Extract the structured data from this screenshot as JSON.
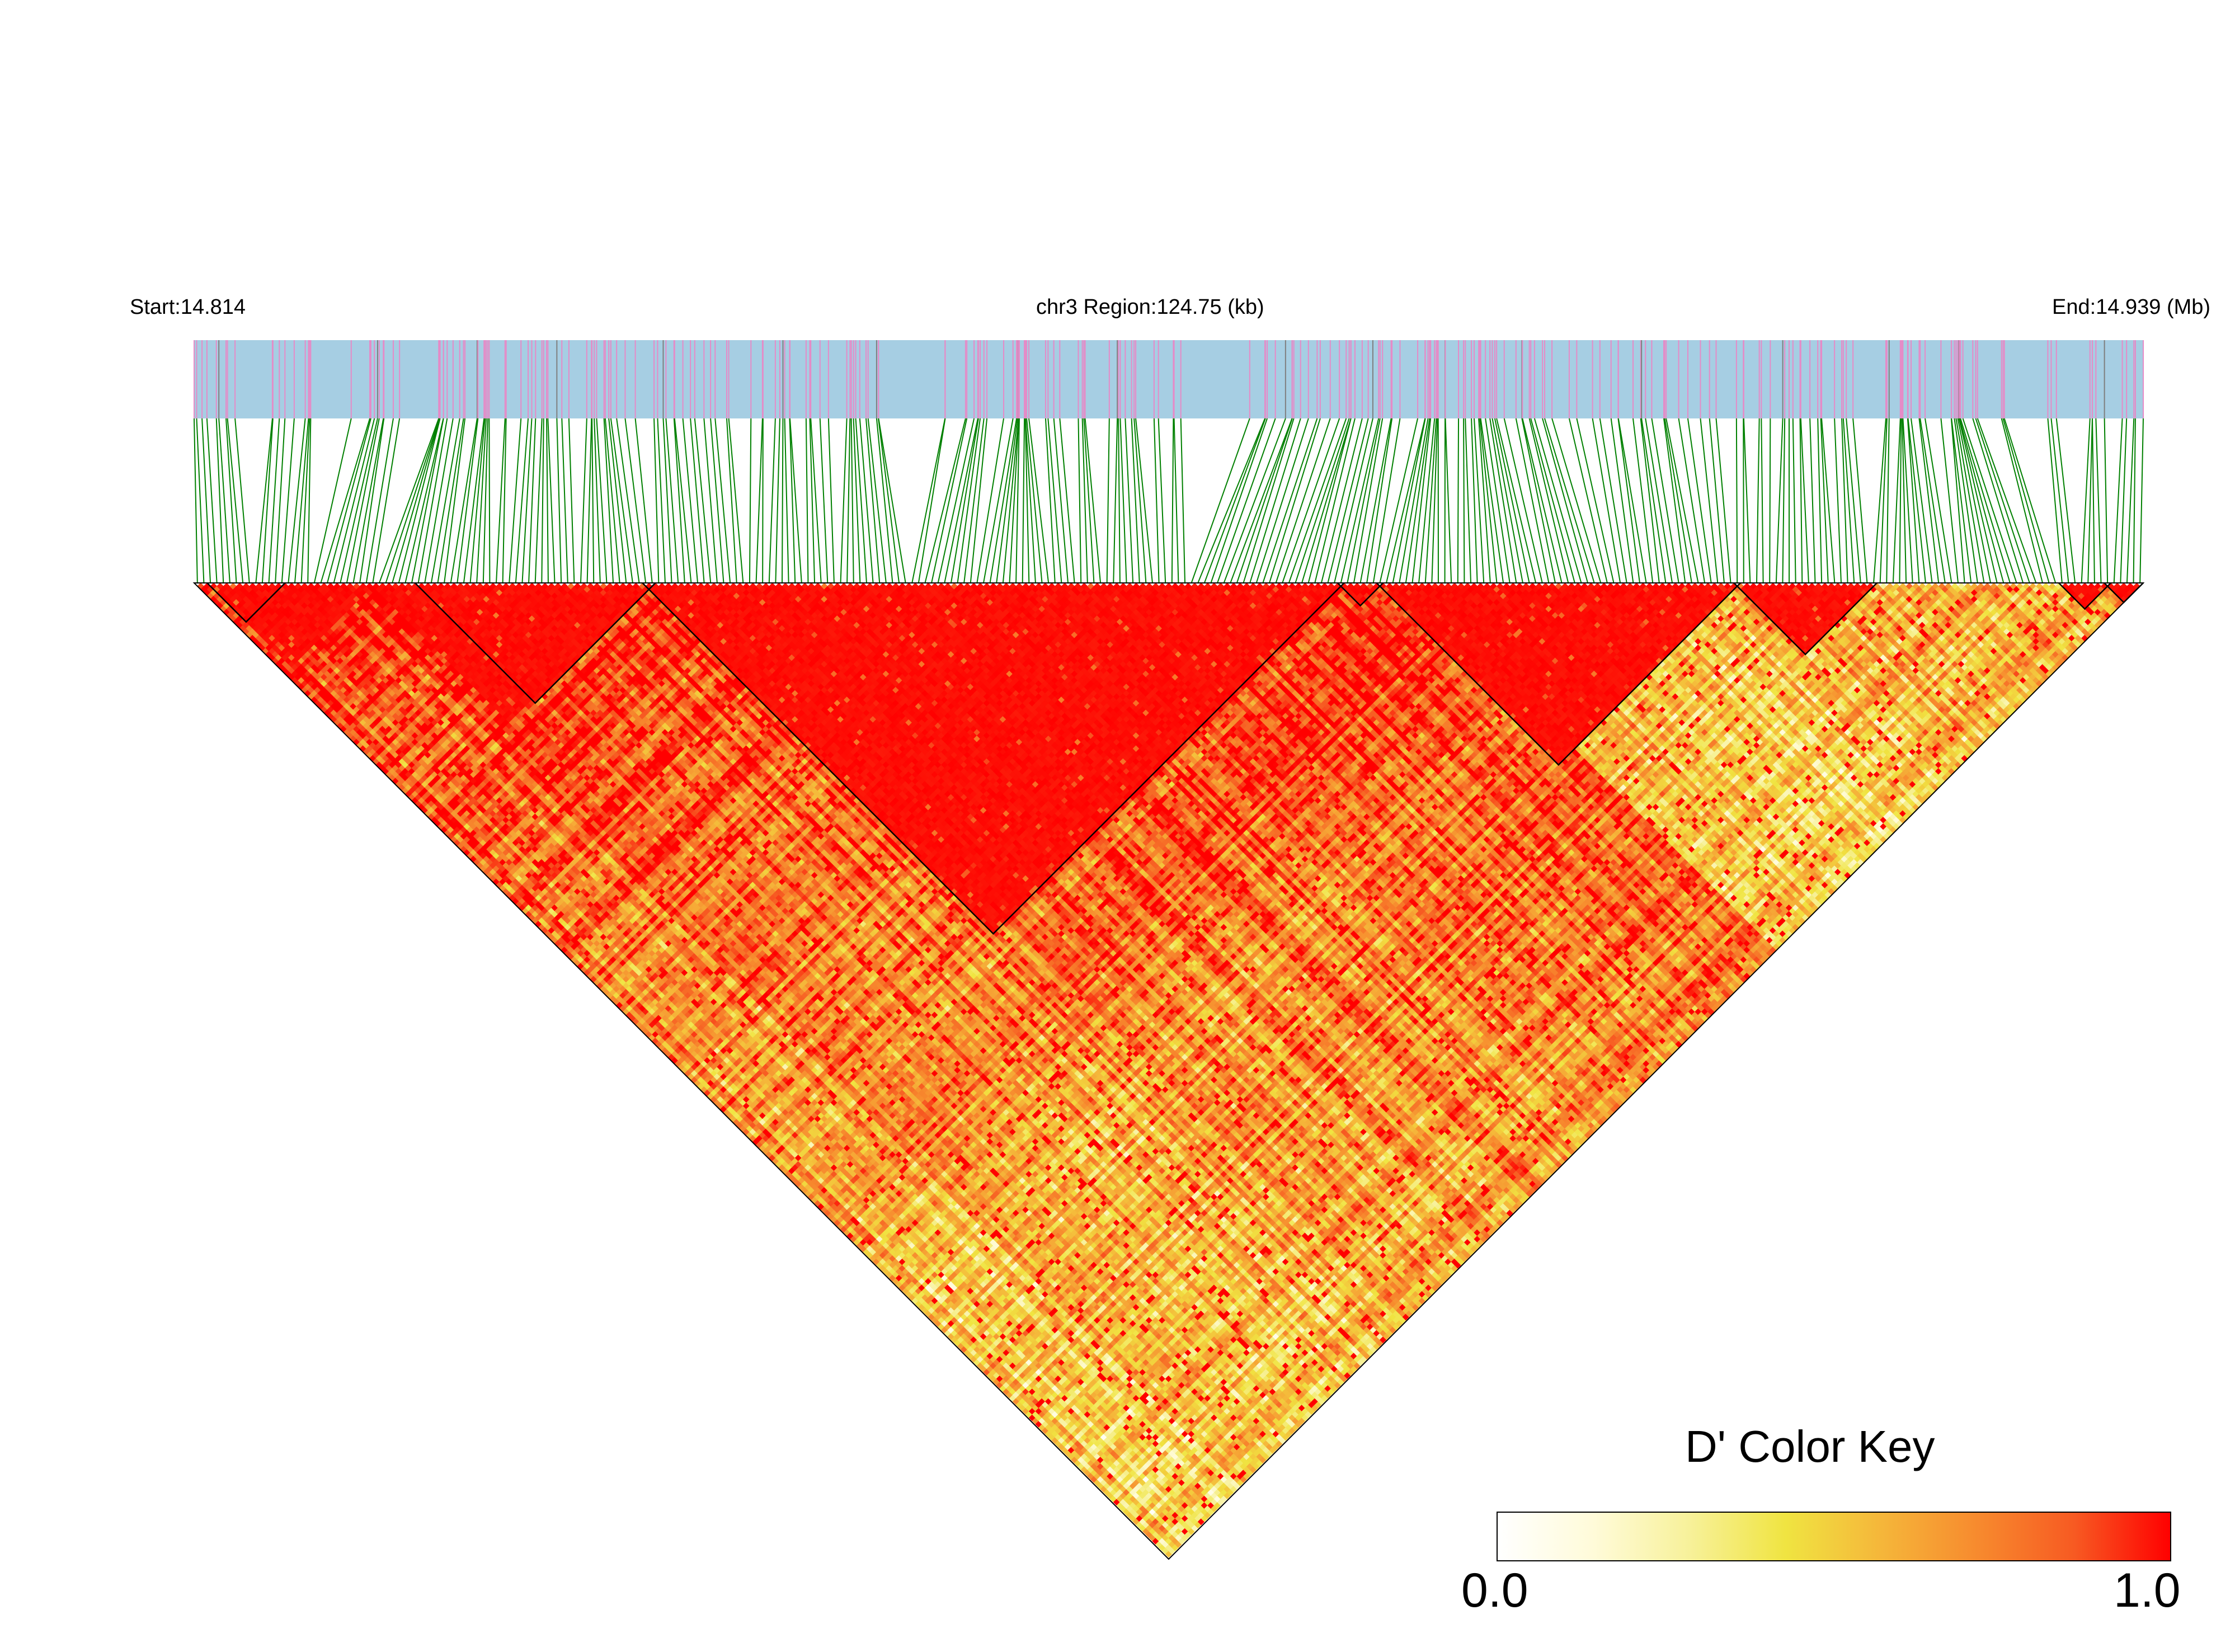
{
  "header": {
    "start_label": "Start:14.814",
    "region_label": "chr3 Region:124.75 (kb)",
    "end_label": "End:14.939 (Mb)"
  },
  "color_key": {
    "title": "D' Color Key",
    "min_label": "0.0",
    "max_label": "1.0",
    "colors": [
      "#ffffff",
      "#fffbd9",
      "#f7f19a",
      "#f0e441",
      "#f5b63a",
      "#f78a2e",
      "#f75a22",
      "#ff0000"
    ]
  },
  "chart_data": {
    "type": "heatmap",
    "measure": "D'",
    "chromosome": "chr3",
    "region_start_mb": 14.814,
    "region_end_mb": 14.939,
    "region_length_kb": 124.75,
    "value_range": [
      0,
      1
    ],
    "colors": {
      "track_background": "#a6cee3",
      "snp_tick": "#e58bc7",
      "snp_tick_alt": "#7f7f7f",
      "connector": "#008000",
      "high_ld": "#ff0000",
      "block_outline": "#000000"
    },
    "ld_blocks_mb": [
      [
        14.8143,
        14.8203
      ],
      [
        14.8301,
        14.842
      ],
      [
        14.8414,
        14.8898
      ],
      [
        14.8898,
        14.8915
      ],
      [
        14.8915,
        14.9121
      ],
      [
        14.9121,
        14.9206
      ],
      [
        14.9326,
        14.9361
      ],
      [
        14.9361,
        14.9386
      ]
    ],
    "high_ld_regions_mb": [
      [
        14.8414,
        14.8898
      ],
      [
        14.892,
        14.9122
      ],
      [
        14.8145,
        14.827
      ],
      [
        14.827,
        14.8414
      ]
    ]
  }
}
